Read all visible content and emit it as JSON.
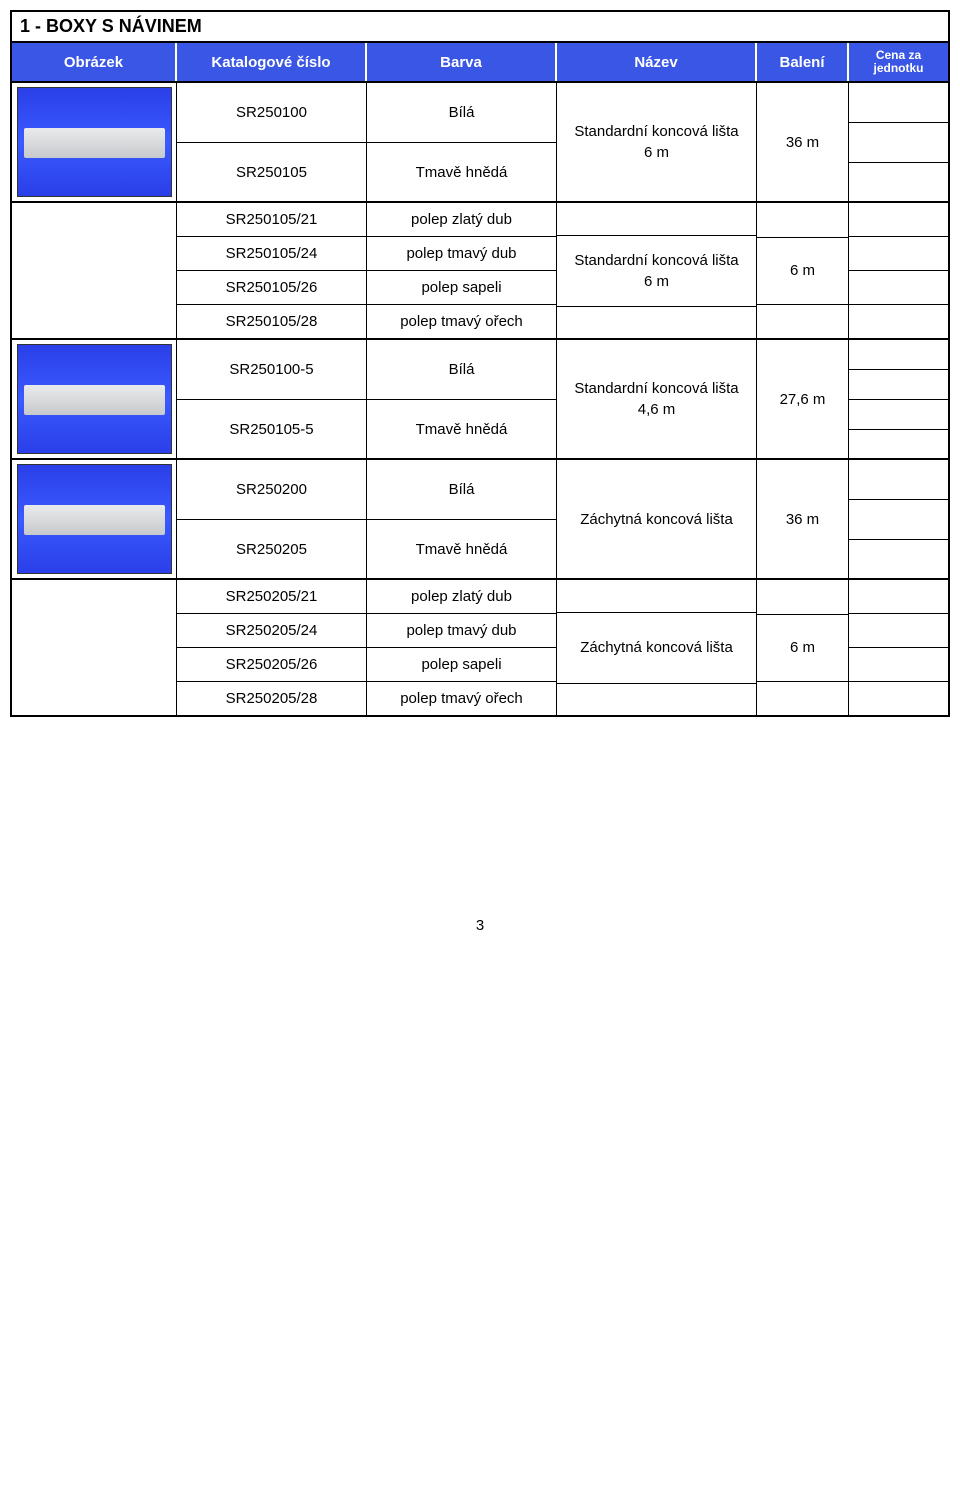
{
  "section_title": "1 - BOXY S NÁVINEM",
  "headers": {
    "image": "Obrázek",
    "catalog": "Katalogové číslo",
    "color": "Barva",
    "name": "Název",
    "pack": "Balení",
    "price": "Cena za jednotku"
  },
  "groups": [
    {
      "has_image": true,
      "items": [
        {
          "catalog": "SR250100",
          "color": "Bílá"
        },
        {
          "catalog": "SR250105",
          "color": "Tmavě hnědá"
        }
      ],
      "name": "Standardní koncová lišta\n6 m",
      "pack": "36 m",
      "price_rows": 3
    },
    {
      "has_image": false,
      "items": [
        {
          "catalog": "SR250105/21",
          "color": "polep zlatý dub"
        },
        {
          "catalog": "SR250105/24",
          "color": "polep tmavý dub"
        },
        {
          "catalog": "SR250105/26",
          "color": "polep sapeli"
        },
        {
          "catalog": "SR250105/28",
          "color": "polep tmavý ořech"
        }
      ],
      "name": "Standardní koncová lišta\n6 m",
      "name_span_start": 1,
      "name_span_end": 2,
      "pack": "6 m",
      "price_rows": 4
    },
    {
      "has_image": true,
      "items": [
        {
          "catalog": "SR250100-5",
          "color": "Bílá"
        },
        {
          "catalog": "SR250105-5",
          "color": "Tmavě hnědá"
        }
      ],
      "name": "Standardní koncová lišta\n4,6 m",
      "pack": "27,6 m",
      "price_rows": 4
    },
    {
      "has_image": true,
      "items": [
        {
          "catalog": "SR250200",
          "color": "Bílá"
        },
        {
          "catalog": "SR250205",
          "color": "Tmavě hnědá"
        }
      ],
      "name": "Záchytná koncová lišta",
      "pack": "36 m",
      "price_rows": 3
    },
    {
      "has_image": false,
      "items": [
        {
          "catalog": "SR250205/21",
          "color": "polep zlatý dub"
        },
        {
          "catalog": "SR250205/24",
          "color": "polep tmavý dub"
        },
        {
          "catalog": "SR250205/26",
          "color": "polep sapeli"
        },
        {
          "catalog": "SR250205/28",
          "color": "polep tmavý ořech"
        }
      ],
      "name": "Záchytná koncová lišta",
      "name_span_start": 1,
      "name_span_end": 2,
      "pack": "6 m",
      "price_rows": 4
    }
  ],
  "page_number": "3",
  "colors": {
    "header_bg": "#3956e5",
    "header_fg": "#ffffff",
    "border": "#000000",
    "thumb_bg_top": "#2a3fe8",
    "thumb_bg_mid": "#3a5aff",
    "profile": "#c7c9cc"
  }
}
